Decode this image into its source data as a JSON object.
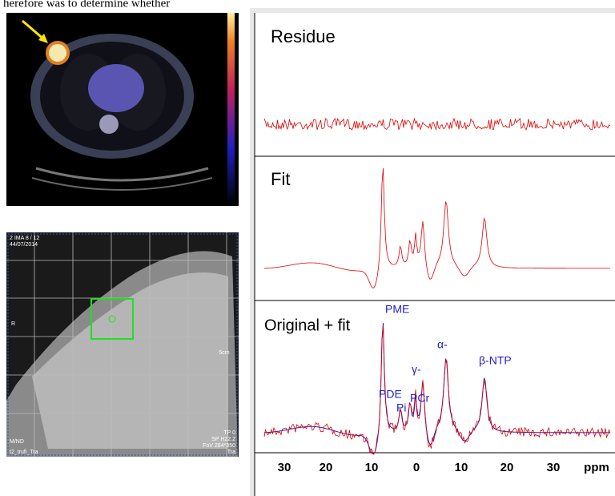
{
  "header": {
    "text": "herefore was to determine whether"
  },
  "mri": {
    "top_left": [
      "2 IMA 8 / 12",
      "44/07/2014"
    ],
    "side_label": "R",
    "scale": "5cm",
    "bottom_left": [
      "M/ND",
      "t2_trufi_Tra"
    ],
    "bottom_right": [
      "TP 0",
      "SP H22.2",
      "FoV 284*350",
      "Tra"
    ]
  },
  "panels": {
    "residue": {
      "title": "Residue"
    },
    "fit": {
      "title": "Fit"
    },
    "original": {
      "title": "Original + fit",
      "peaks": [
        "PME",
        "PDE",
        "Pi",
        "PCr",
        "γ-",
        "α-",
        "β-NTP"
      ]
    }
  },
  "axis": {
    "ticks": [
      "30",
      "20",
      "10",
      "0",
      "10",
      "20",
      "30"
    ],
    "unit": "ppm"
  }
}
